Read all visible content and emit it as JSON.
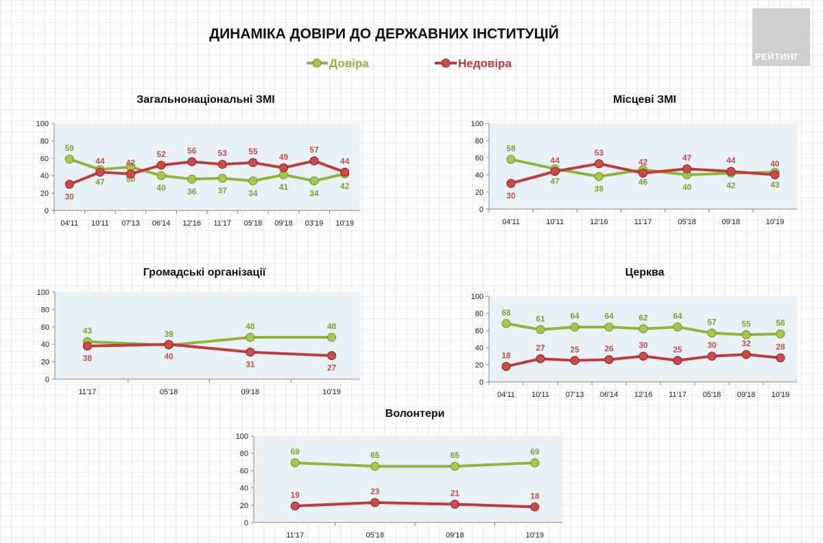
{
  "title": "ДИНАМІКА ДОВІРИ ДО ДЕРЖАВНИХ ІНСТИТУЦІЙ",
  "logo_text": "РЕЙТИНГ",
  "legend": [
    {
      "label": "Довіра",
      "color": "#8db53c"
    },
    {
      "label": "Недовіра",
      "color": "#c0393b"
    }
  ],
  "colors": {
    "trust_line": "#8db53c",
    "trust_label": "#7f9f33",
    "distrust_line": "#c0393b",
    "distrust_label": "#c0504d",
    "plot_bg": "#e9f1f7"
  },
  "chart_data": [
    {
      "type": "line",
      "title": "Загальнонаціональні ЗМІ",
      "ylim": [
        0,
        100
      ],
      "yticks": [
        "0",
        "20",
        "40",
        "60",
        "80",
        "100"
      ],
      "categories": [
        "04'11",
        "10'11",
        "07'13",
        "06'14",
        "12'16",
        "11'17",
        "05'18",
        "09'18",
        "03'19",
        "10'19"
      ],
      "series": [
        {
          "name": "Довіра",
          "values": [
            59,
            47,
            50,
            40,
            36,
            37,
            34,
            41,
            34,
            42
          ]
        },
        {
          "name": "Недовіра",
          "values": [
            30,
            44,
            42,
            52,
            56,
            53,
            55,
            49,
            57,
            44
          ]
        }
      ]
    },
    {
      "type": "line",
      "title": "Місцеві ЗМІ",
      "ylim": [
        0,
        100
      ],
      "yticks": [
        "0",
        "20",
        "40",
        "60",
        "80",
        "100"
      ],
      "categories": [
        "04'11",
        "10'11",
        "12'16",
        "11'17",
        "05'18",
        "09'18",
        "10'19"
      ],
      "series": [
        {
          "name": "Довіра",
          "values": [
            58,
            47,
            38,
            46,
            40,
            42,
            43
          ]
        },
        {
          "name": "Недовіра",
          "values": [
            30,
            44,
            53,
            42,
            47,
            44,
            40
          ]
        }
      ]
    },
    {
      "type": "line",
      "title": "Громадські організації",
      "ylim": [
        0,
        100
      ],
      "yticks": [
        "0",
        "20",
        "40",
        "60",
        "80",
        "100"
      ],
      "categories": [
        "11'17",
        "05'18",
        "09'18",
        "10'19"
      ],
      "series": [
        {
          "name": "Довіра",
          "values": [
            43,
            39,
            48,
            48
          ]
        },
        {
          "name": "Недовіра",
          "values": [
            38,
            40,
            31,
            27
          ]
        }
      ]
    },
    {
      "type": "line",
      "title": "Церква",
      "ylim": [
        0,
        100
      ],
      "yticks": [
        "0",
        "20",
        "40",
        "60",
        "80",
        "100"
      ],
      "categories": [
        "04'11",
        "10'11",
        "07'13",
        "06'14",
        "12'16",
        "11'17",
        "05'18",
        "09'18",
        "10'19"
      ],
      "series": [
        {
          "name": "Довіра",
          "values": [
            68,
            61,
            64,
            64,
            62,
            64,
            57,
            55,
            56
          ]
        },
        {
          "name": "Недовіра",
          "values": [
            18,
            27,
            25,
            26,
            30,
            25,
            30,
            32,
            28
          ]
        }
      ]
    },
    {
      "type": "line",
      "title": "Волонтери",
      "ylim": [
        0,
        100
      ],
      "yticks": [
        "0",
        "20",
        "40",
        "60",
        "80",
        "100"
      ],
      "categories": [
        "11'17",
        "05'18",
        "09'18",
        "10'19"
      ],
      "series": [
        {
          "name": "Довіра",
          "values": [
            69,
            65,
            65,
            69
          ]
        },
        {
          "name": "Недовіра",
          "values": [
            19,
            23,
            21,
            18
          ]
        }
      ]
    }
  ]
}
